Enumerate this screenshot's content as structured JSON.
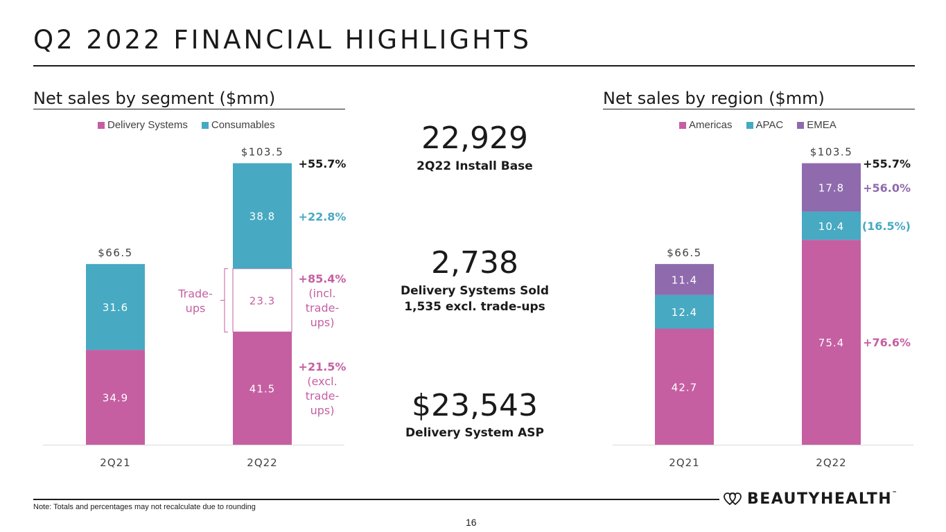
{
  "slide": {
    "title": "Q2 2022 FINANCIAL HIGHLIGHTS",
    "page_number": "16",
    "note": "Note: Totals and percentages may not recalculate due to rounding",
    "logo_text": "BEAUTYHEALTH",
    "logo_tm": "™"
  },
  "colors": {
    "magenta": "#c55fa1",
    "teal": "#47a9c2",
    "purple": "#8f6aad",
    "axis": "#d9d9d9"
  },
  "kpis": [
    {
      "value": "22,929",
      "label_lines": [
        "2Q22 Install Base"
      ]
    },
    {
      "value": "2,738",
      "label_lines": [
        "Delivery Systems Sold",
        "1,535 excl. trade-ups"
      ]
    },
    {
      "value": "$23,543",
      "label_lines": [
        "Delivery System ASP"
      ]
    }
  ],
  "chart_data": [
    {
      "type": "bar",
      "stacked": true,
      "title": "Net sales by segment ($mm)",
      "categories": [
        "2Q21",
        "2Q22"
      ],
      "legend": [
        "Delivery Systems",
        "Consumables"
      ],
      "series": [
        {
          "name": "Delivery Systems",
          "color": "#c55fa1",
          "values": [
            34.9,
            41.5
          ],
          "labels": [
            "34.9",
            "41.5"
          ]
        },
        {
          "name": "Trade-ups",
          "color": "#ffffff",
          "values": [
            0,
            23.3
          ],
          "labels": [
            "",
            "23.3"
          ]
        },
        {
          "name": "Consumables",
          "color": "#47a9c2",
          "values": [
            31.6,
            38.8
          ],
          "labels": [
            "31.6",
            "38.8"
          ]
        }
      ],
      "totals": [
        "$66.5",
        "$103.5"
      ],
      "ylim": [
        0,
        103.5
      ],
      "tradeups_label": [
        "Trade-",
        "ups"
      ],
      "growth_annotations": [
        {
          "lines": [
            "+55.7%"
          ],
          "color": "#1a1a1a",
          "anchor_value": 103.5
        },
        {
          "lines": [
            "+22.8%"
          ],
          "color": "#47a9c2",
          "anchor_value": 84.05
        },
        {
          "lines": [
            "+85.4%",
            "(incl.",
            "trade-",
            "ups)"
          ],
          "color": "#c55fa1",
          "anchor_value": 53.15
        },
        {
          "lines": [
            "+21.5%",
            "(excl.",
            "trade-",
            "ups)"
          ],
          "color": "#c55fa1",
          "anchor_value": 20.75
        }
      ]
    },
    {
      "type": "bar",
      "stacked": true,
      "title": "Net sales by region ($mm)",
      "categories": [
        "2Q21",
        "2Q22"
      ],
      "legend": [
        "Americas",
        "APAC",
        "EMEA"
      ],
      "series": [
        {
          "name": "Americas",
          "color": "#c55fa1",
          "values": [
            42.7,
            75.4
          ],
          "labels": [
            "42.7",
            "75.4"
          ]
        },
        {
          "name": "APAC",
          "color": "#47a9c2",
          "values": [
            12.4,
            10.4
          ],
          "labels": [
            "12.4",
            "10.4"
          ]
        },
        {
          "name": "EMEA",
          "color": "#8f6aad",
          "values": [
            11.4,
            17.8
          ],
          "labels": [
            "11.4",
            "17.8"
          ]
        }
      ],
      "totals": [
        "$66.5",
        "$103.5"
      ],
      "ylim": [
        0,
        103.5
      ],
      "growth_annotations": [
        {
          "lines": [
            "+55.7%"
          ],
          "color": "#1a1a1a",
          "anchor_value": 103.5
        },
        {
          "lines": [
            "+56.0%"
          ],
          "color": "#8f6aad",
          "anchor_value": 94.6
        },
        {
          "lines": [
            "(16.5%)"
          ],
          "color": "#47a9c2",
          "anchor_value": 80.6
        },
        {
          "lines": [
            "+76.6%"
          ],
          "color": "#c55fa1",
          "anchor_value": 37.7
        }
      ]
    }
  ]
}
